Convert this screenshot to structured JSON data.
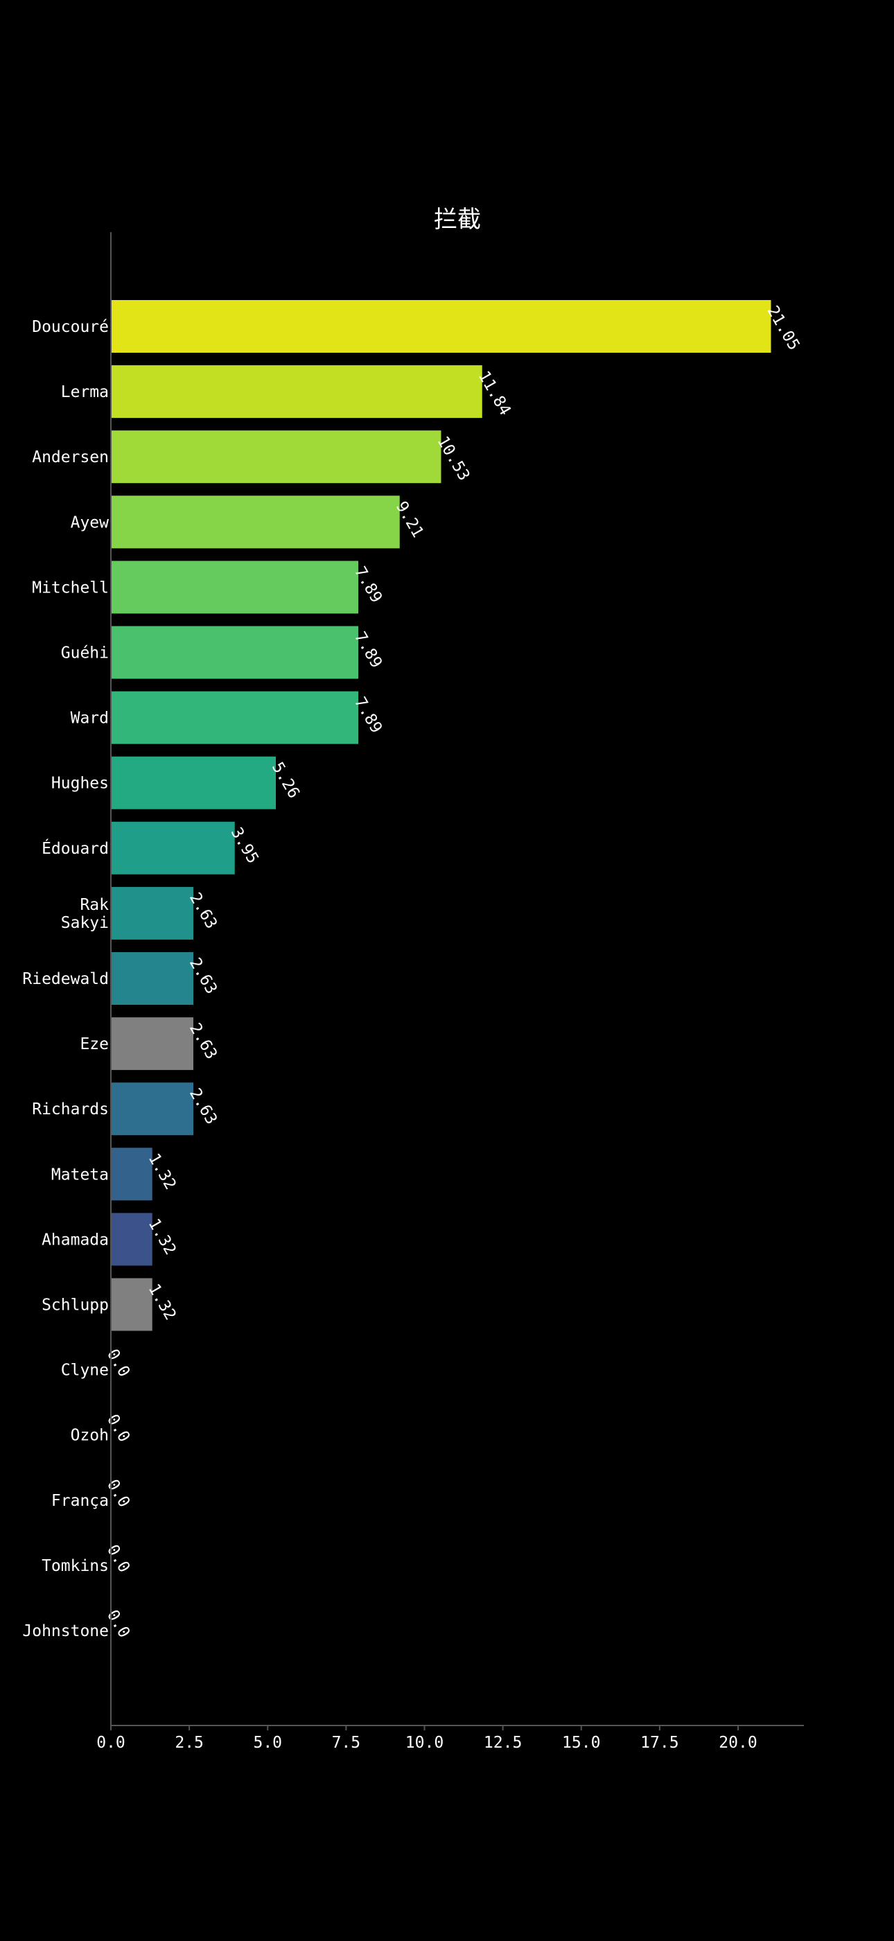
{
  "chart_data": {
    "type": "bar",
    "orientation": "horizontal",
    "title": "拦截",
    "xlabel": "",
    "ylabel": "",
    "categories": [
      "Doucouré",
      "Lerma",
      "Andersen",
      "Ayew",
      "Mitchell",
      "Guéhi",
      "Ward",
      "Hughes",
      "Édouard",
      "Rak\nSakyi",
      "Riedewald",
      "Eze",
      "Richards",
      "Mateta",
      "Ahamada",
      "Schlupp",
      "Clyne",
      "Ozoh",
      "França",
      "Tomkins",
      "Johnstone"
    ],
    "values": [
      21.05,
      11.84,
      10.53,
      9.21,
      7.89,
      7.89,
      7.89,
      5.26,
      3.95,
      2.63,
      2.63,
      2.63,
      2.63,
      1.32,
      1.32,
      1.32,
      0.0,
      0.0,
      0.0,
      0.0,
      0.0
    ],
    "value_labels": [
      "21.05",
      "11.84",
      "10.53",
      "9.21",
      "7.89",
      "7.89",
      "7.89",
      "5.26",
      "3.95",
      "2.63",
      "2.63",
      "2.63",
      "2.63",
      "1.32",
      "1.32",
      "1.32",
      "0.0",
      "0.0",
      "0.0",
      "0.0",
      "0.0"
    ],
    "colors": [
      "#e2e418",
      "#c2df23",
      "#a0da39",
      "#86d549",
      "#65cb5e",
      "#4ac16d",
      "#32b67a",
      "#24aa83",
      "#1f9e89",
      "#21918c",
      "#25858e",
      "#808080",
      "#2e6e8e",
      "#33638d",
      "#3b528b",
      "#808080",
      "#808080",
      "#808080",
      "#808080",
      "#808080",
      "#808080"
    ],
    "xlim": [
      0,
      22.1
    ],
    "xticks": [
      0.0,
      2.5,
      5.0,
      7.5,
      10.0,
      12.5,
      15.0,
      17.5,
      20.0
    ],
    "xtick_labels": [
      "0.0",
      "2.5",
      "5.0",
      "7.5",
      "10.0",
      "12.5",
      "15.0",
      "17.5",
      "20.0"
    ],
    "grid": false,
    "background": "#000000",
    "text_color": "#ffffff",
    "axis_color": "#555555"
  }
}
